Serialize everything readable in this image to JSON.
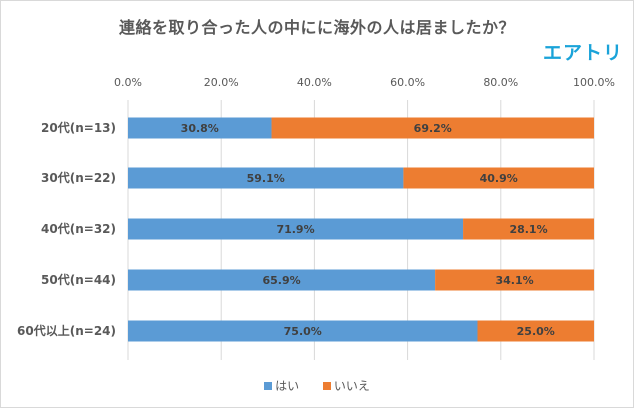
{
  "title": "連絡を取り合った人の中にに海外の人は居ましたか？",
  "brand": "エアトリ",
  "colors": {
    "yes": "#5b9bd5",
    "no": "#ed7d31",
    "grid": "#d9d9d9",
    "text": "#595959"
  },
  "chart_data": {
    "type": "bar",
    "orientation": "horizontal",
    "stacked": true,
    "percent": true,
    "categories": [
      "20代(n=13)",
      "30代(n=22)",
      "40代(n=32)",
      "50代(n=44)",
      "60代以上(n=24)"
    ],
    "series": [
      {
        "name": "はい",
        "values": [
          30.8,
          59.1,
          71.9,
          65.9,
          75.0
        ],
        "labels": [
          "30.8%",
          "59.1%",
          "71.9%",
          "65.9%",
          "75.0%"
        ]
      },
      {
        "name": "いいえ",
        "values": [
          69.2,
          40.9,
          28.1,
          34.1,
          25.0
        ],
        "labels": [
          "69.2%",
          "40.9%",
          "28.1%",
          "34.1%",
          "25.0%"
        ]
      }
    ],
    "xlim": [
      0,
      100
    ],
    "xticks": [
      "0.0%",
      "20.0%",
      "40.0%",
      "60.0%",
      "80.0%",
      "100.0%"
    ],
    "grid": true,
    "legend_position": "bottom"
  }
}
